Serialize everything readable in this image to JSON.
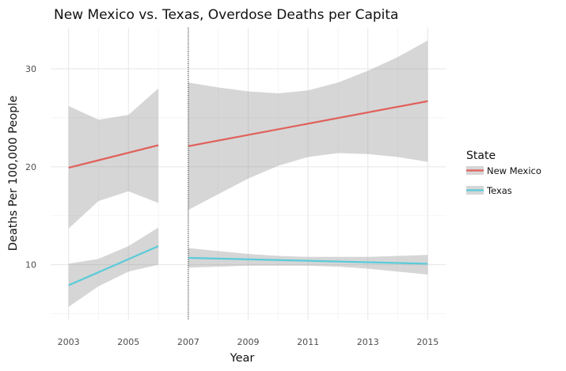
{
  "chart_data": {
    "type": "line",
    "title": "New Mexico vs. Texas, Overdose Deaths per Capita",
    "xlabel": "Year",
    "ylabel": "Deaths Per 100,000 People",
    "xlim": [
      2002.4,
      2015.6
    ],
    "ylim": [
      4.4,
      34.2
    ],
    "x_ticks": [
      2003,
      2005,
      2007,
      2009,
      2011,
      2013,
      2015
    ],
    "y_ticks": [
      10,
      20,
      30
    ],
    "grid": true,
    "vline": 2007,
    "legend": {
      "title": "State",
      "placement": "right"
    },
    "series": [
      {
        "name": "New Mexico",
        "color": "#e0605a",
        "segments": [
          {
            "x": [
              2003,
              2006
            ],
            "y": [
              19.9,
              22.2
            ],
            "band_x": [
              2003,
              2004,
              2005,
              2006
            ],
            "band_low": [
              13.7,
              16.5,
              17.5,
              16.3
            ],
            "band_high": [
              26.2,
              24.8,
              25.3,
              28.0
            ]
          },
          {
            "x": [
              2007,
              2015
            ],
            "y": [
              22.1,
              26.7
            ],
            "band_x": [
              2007,
              2008,
              2009,
              2010,
              2011,
              2012,
              2013,
              2014,
              2015
            ],
            "band_low": [
              15.6,
              17.2,
              18.8,
              20.1,
              21.0,
              21.4,
              21.3,
              21.0,
              20.5
            ],
            "band_high": [
              28.6,
              28.1,
              27.7,
              27.5,
              27.8,
              28.6,
              29.8,
              31.2,
              32.9
            ]
          }
        ]
      },
      {
        "name": "Texas",
        "color": "#5acbd9",
        "segments": [
          {
            "x": [
              2003,
              2006
            ],
            "y": [
              7.9,
              11.9
            ],
            "band_x": [
              2003,
              2004,
              2005,
              2006
            ],
            "band_low": [
              5.7,
              7.8,
              9.3,
              10.0
            ],
            "band_high": [
              10.1,
              10.6,
              11.9,
              13.8
            ]
          },
          {
            "x": [
              2007,
              2015
            ],
            "y": [
              10.7,
              10.1
            ],
            "band_x": [
              2007,
              2008,
              2009,
              2010,
              2011,
              2012,
              2013,
              2014,
              2015
            ],
            "band_low": [
              9.7,
              9.8,
              9.9,
              9.9,
              9.9,
              9.8,
              9.6,
              9.3,
              9.0
            ],
            "band_high": [
              11.7,
              11.4,
              11.1,
              10.9,
              10.8,
              10.8,
              10.8,
              10.9,
              11.0
            ]
          }
        ]
      }
    ]
  }
}
